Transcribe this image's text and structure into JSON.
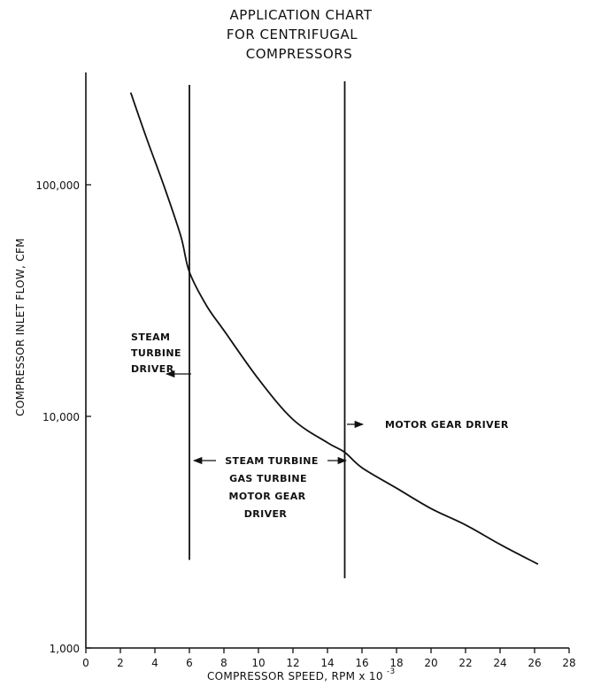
{
  "chart_data": {
    "type": "line",
    "title": [
      "APPLICATION CHART",
      "FOR CENTRIFUGAL",
      "COMPRESSORS"
    ],
    "xlabel": "COMPRESSOR SPEED, RPM x 10",
    "xlabel_exponent": "-3",
    "ylabel": "COMPRESSOR INLET FLOW, CFM",
    "x_ticks": [
      "0",
      "2",
      "4",
      "6",
      "8",
      "10",
      "12",
      "14",
      "16",
      "18",
      "20",
      "22",
      "24",
      "26",
      "28"
    ],
    "y_ticks": [
      {
        "value": 1000,
        "label": "1,000"
      },
      {
        "value": 10000,
        "label": "10,000"
      },
      {
        "value": 100000,
        "label": "100,000"
      }
    ],
    "xlim": [
      0,
      28
    ],
    "ylim": [
      1000,
      300000
    ],
    "y_scale": "log",
    "grid": false,
    "series": [
      {
        "x": [
          2.6,
          3.5,
          4.5,
          5.5,
          6.0,
          7.0,
          8.0,
          10.0,
          12.0,
          14.0,
          15.0,
          16.0,
          18.0,
          20.0,
          22.0,
          24.0,
          26.2
        ],
        "y": [
          250000,
          160000,
          100000,
          60000,
          42000,
          30000,
          23500,
          14500,
          9700,
          7700,
          7000,
          6000,
          4900,
          4000,
          3400,
          2800,
          2300
        ]
      }
    ],
    "vertical_lines": [
      {
        "x": 6,
        "y_top": 270000,
        "y_bottom": 2400
      },
      {
        "x": 15,
        "y_top": 280000,
        "y_bottom": 2000
      }
    ],
    "annotations": {
      "steam_left": [
        "STEAM",
        "TURBINE",
        "DRIVER"
      ],
      "motor_right": "MOTOR GEAR DRIVER",
      "middle": [
        "STEAM TURBINE",
        "GAS TURBINE",
        "MOTOR GEAR",
        "DRIVER"
      ]
    }
  }
}
